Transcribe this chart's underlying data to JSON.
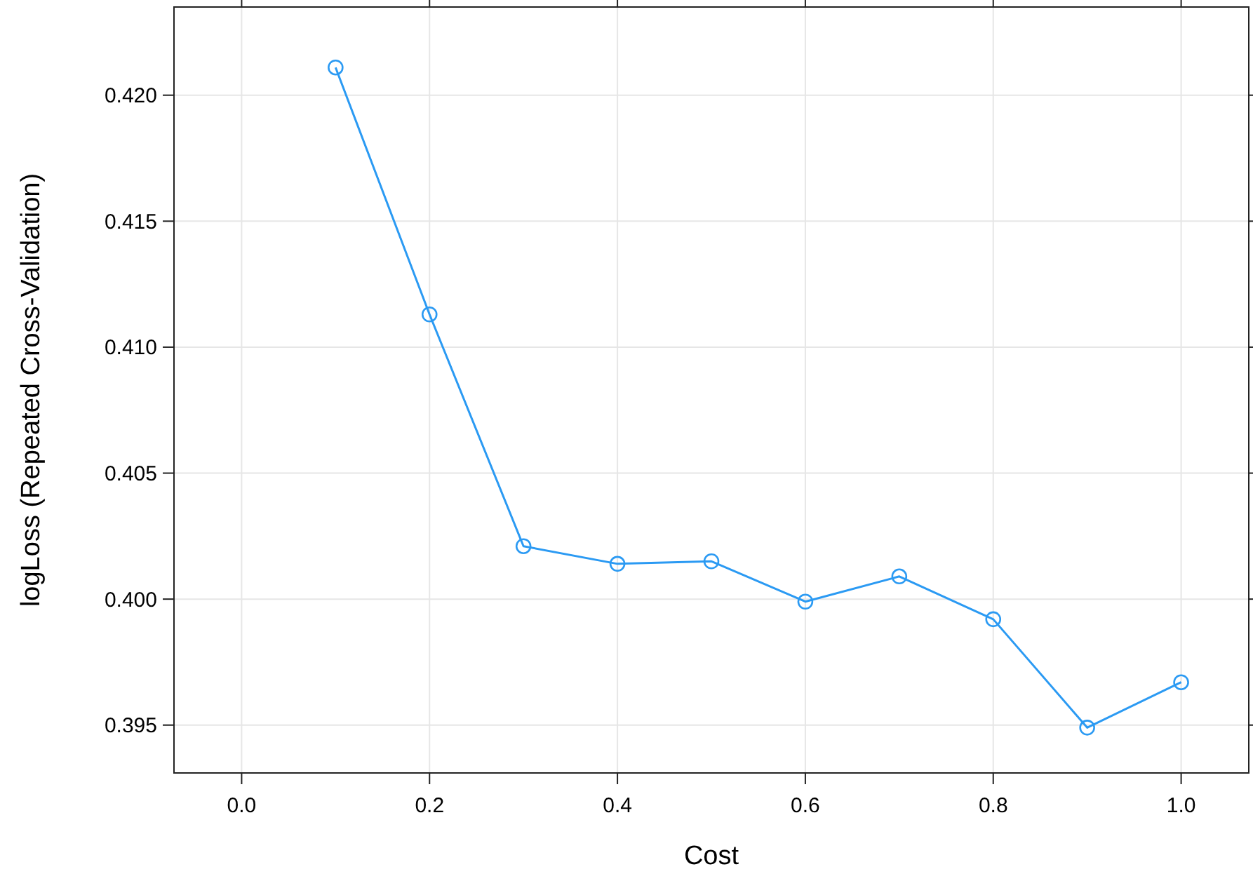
{
  "chart_data": {
    "type": "line",
    "xlabel": "Cost",
    "ylabel": "logLoss (Repeated Cross-Validation)",
    "x": [
      0.1,
      0.2,
      0.3,
      0.4,
      0.5,
      0.6,
      0.7,
      0.8,
      0.9,
      1.0
    ],
    "series": [
      {
        "color": "#2b9af3",
        "values": [
          0.4211,
          0.4113,
          0.4021,
          0.4014,
          0.4015,
          0.3999,
          0.4009,
          0.3992,
          0.3949,
          0.3967
        ]
      }
    ],
    "xlim": [
      -0.072,
      1.072
    ],
    "ylim": [
      0.3931,
      0.4235
    ],
    "xticks": [
      {
        "value": 0,
        "label": "0.0"
      },
      0.2,
      0.4,
      0.6,
      0.8,
      {
        "value": 1,
        "label": "1.0"
      }
    ],
    "yticks": [
      {
        "value": 0.395,
        "label": "0.395"
      },
      {
        "value": 0.4,
        "label": "0.400"
      },
      {
        "value": 0.405,
        "label": "0.405"
      },
      {
        "value": 0.41,
        "label": "0.410"
      },
      {
        "value": 0.415,
        "label": "0.415"
      },
      {
        "value": 0.42,
        "label": "0.420"
      }
    ],
    "grid": true,
    "marker": "circle",
    "line_style": "solid"
  }
}
